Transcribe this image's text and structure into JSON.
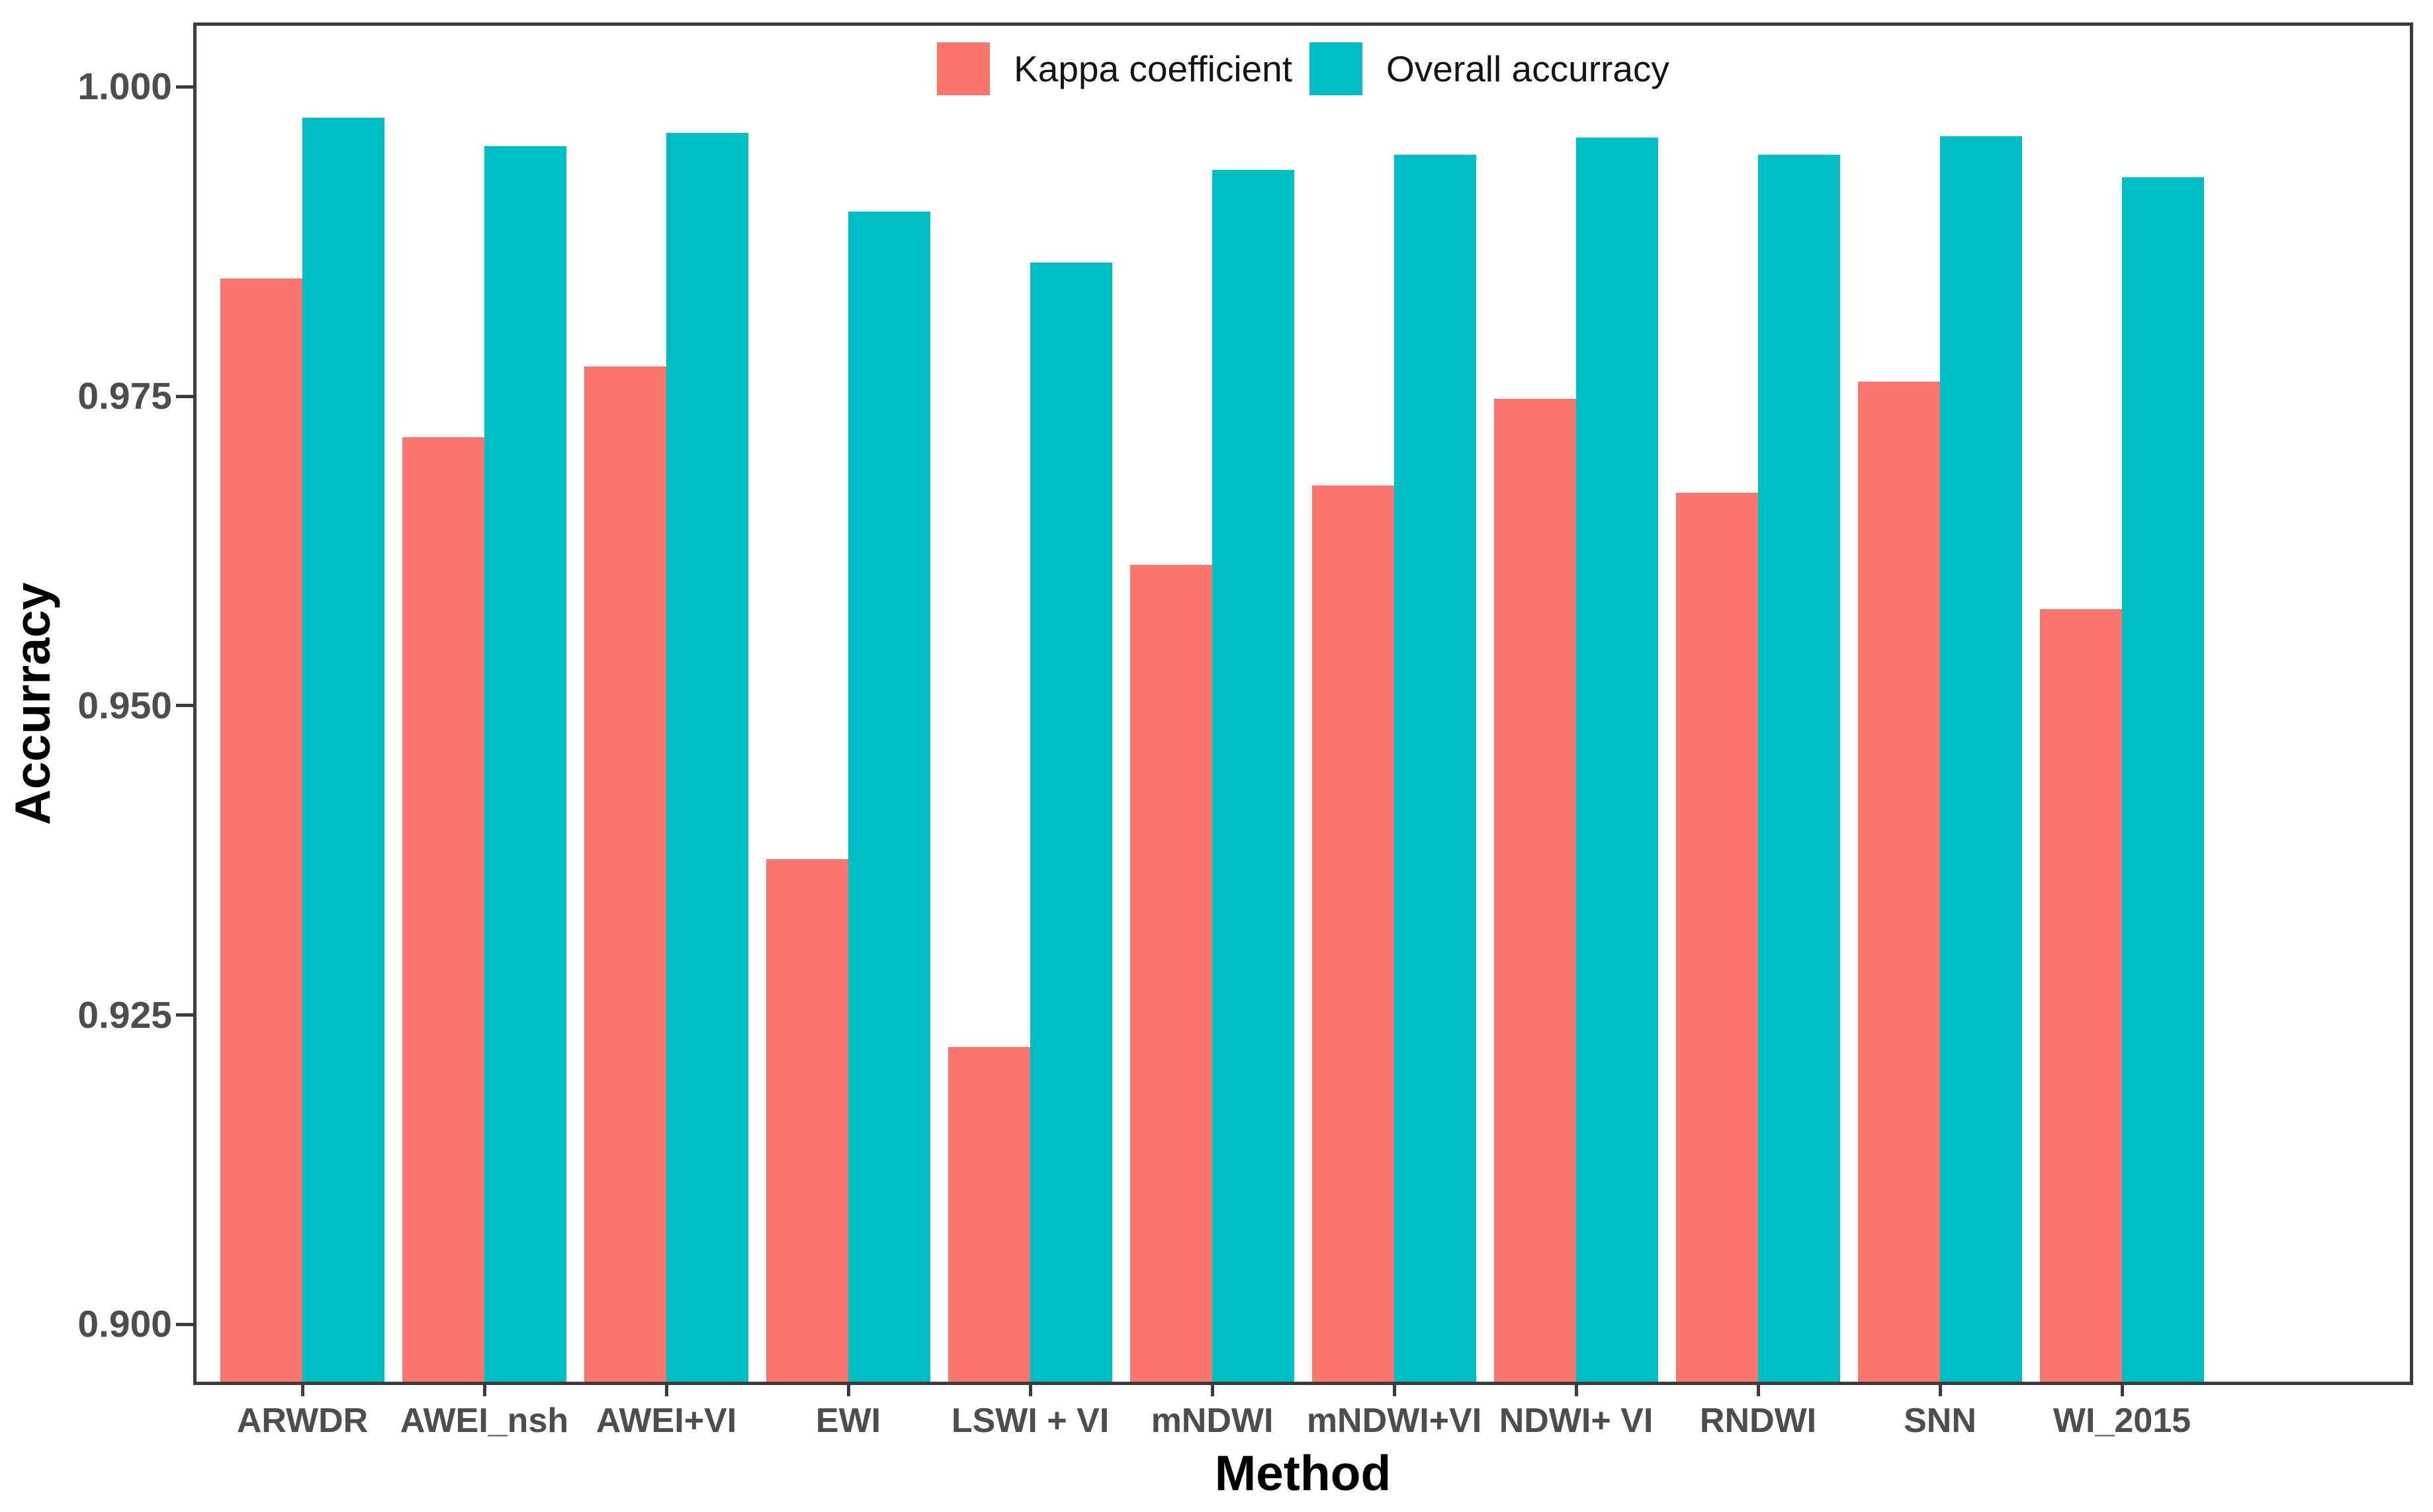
{
  "figure": {
    "x_axis_title": "Method",
    "y_axis_title": "Accurracy"
  },
  "colors": {
    "kappa": "#F8766D",
    "overall": "#00BFC4",
    "panel_border": "#3C3C3C",
    "tick_label": "#4D4D4D",
    "axis_title": "#000000",
    "background": "#FFFFFF"
  },
  "chart_data": {
    "type": "bar",
    "title": "",
    "xlabel": "Method",
    "ylabel": "Accurracy",
    "categories": [
      "ARWDR",
      "AWEI_nsh",
      "AWEI+VI",
      "EWI",
      "LSWI + VI",
      "mNDWI",
      "mNDWI+VI",
      "NDWI+ VI",
      "RNDWI",
      "SNN",
      "WI_2015"
    ],
    "series": [
      {
        "name": "Kappa coefficient",
        "color": "#F8766D",
        "values": [
          0.9845,
          0.9717,
          0.9774,
          0.9376,
          0.9224,
          0.9614,
          0.9678,
          0.9748,
          0.9672,
          0.9762,
          0.9578
        ]
      },
      {
        "name": "Overall accurracy",
        "color": "#00BFC4",
        "values": [
          0.9975,
          0.9952,
          0.9963,
          0.9899,
          0.9858,
          0.9933,
          0.9945,
          0.9959,
          0.9945,
          0.996,
          0.9927
        ]
      }
    ],
    "yticks": {
      "values": [
        1.0,
        0.975,
        0.95,
        0.925,
        0.9
      ],
      "labels": [
        "1.000",
        "0.975",
        "0.950",
        "0.925",
        "0.900"
      ]
    },
    "ylim": [
      0.8951,
      1.0052
    ],
    "grid": false,
    "legend_position": "top-center-inside"
  }
}
